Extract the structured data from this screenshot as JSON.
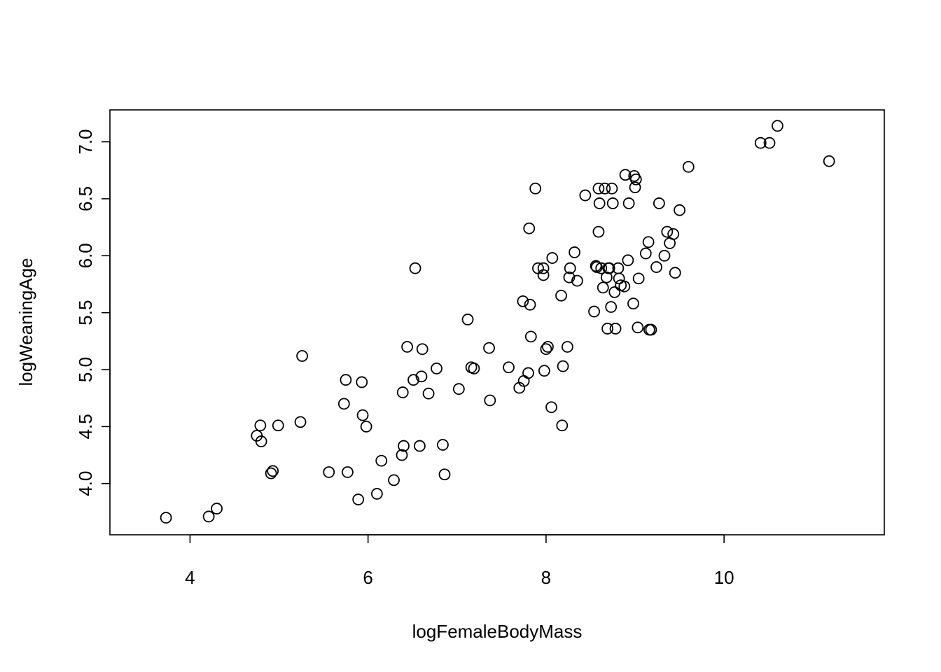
{
  "chart_data": {
    "type": "scatter",
    "title": "",
    "xlabel": "logFemaleBodyMass",
    "ylabel": "logWeaningAge",
    "xlim": [
      3.1,
      11.8
    ],
    "ylim": [
      3.55,
      7.28
    ],
    "xticks": [
      4,
      6,
      8,
      10
    ],
    "xtick_labels": [
      "4",
      "6",
      "8",
      "10"
    ],
    "yticks": [
      4.0,
      4.5,
      5.0,
      5.5,
      6.0,
      6.5,
      7.0
    ],
    "ytick_labels": [
      "4.0",
      "4.5",
      "5.0",
      "5.5",
      "6.0",
      "6.5",
      "7.0"
    ],
    "grid": false,
    "legend": "none",
    "marker": "open-circle",
    "x": [
      3.73,
      4.21,
      4.3,
      4.75,
      4.79,
      4.8,
      4.91,
      4.93,
      4.99,
      5.24,
      5.26,
      5.56,
      5.73,
      5.75,
      5.77,
      5.89,
      5.93,
      5.94,
      5.98,
      6.1,
      6.15,
      6.29,
      6.38,
      6.39,
      6.4,
      6.44,
      6.51,
      6.53,
      6.58,
      6.6,
      6.61,
      6.68,
      6.77,
      6.84,
      6.86,
      7.02,
      7.12,
      7.16,
      7.19,
      7.36,
      7.37,
      7.58,
      7.7,
      7.74,
      7.75,
      7.8,
      7.81,
      7.82,
      7.83,
      7.88,
      7.91,
      7.97,
      7.97,
      7.98,
      8.0,
      8.02,
      8.06,
      8.07,
      8.17,
      8.18,
      8.19,
      8.24,
      8.26,
      8.27,
      8.32,
      8.35,
      8.44,
      8.54,
      8.56,
      8.57,
      8.59,
      8.59,
      8.6,
      8.62,
      8.64,
      8.66,
      8.68,
      8.69,
      8.7,
      8.71,
      8.73,
      8.74,
      8.75,
      8.77,
      8.78,
      8.81,
      8.82,
      8.84,
      8.88,
      8.89,
      8.92,
      8.93,
      8.98,
      8.99,
      9.0,
      9.01,
      9.03,
      9.04,
      9.12,
      9.15,
      9.16,
      9.18,
      9.24,
      9.27,
      9.33,
      9.36,
      9.39,
      9.43,
      9.45,
      9.5,
      9.6,
      10.41,
      10.51,
      10.6,
      11.18
    ],
    "y": [
      3.7,
      3.71,
      3.78,
      4.42,
      4.51,
      4.37,
      4.09,
      4.11,
      4.51,
      4.54,
      5.12,
      4.1,
      4.7,
      4.91,
      4.1,
      3.86,
      4.89,
      4.6,
      4.5,
      3.91,
      4.2,
      4.03,
      4.25,
      4.8,
      4.33,
      5.2,
      4.91,
      5.89,
      4.33,
      4.94,
      5.18,
      4.79,
      5.01,
      4.34,
      4.08,
      4.83,
      5.44,
      5.02,
      5.01,
      5.19,
      4.73,
      5.02,
      4.84,
      5.6,
      4.9,
      4.97,
      6.24,
      5.57,
      5.29,
      6.59,
      5.89,
      5.89,
      5.83,
      4.99,
      5.18,
      5.2,
      4.67,
      5.98,
      5.65,
      4.51,
      5.03,
      5.2,
      5.81,
      5.89,
      6.03,
      5.78,
      6.53,
      5.51,
      5.91,
      5.9,
      6.59,
      6.21,
      6.46,
      5.89,
      5.72,
      6.59,
      5.81,
      5.36,
      5.89,
      5.89,
      5.55,
      6.59,
      6.46,
      5.68,
      5.36,
      5.89,
      5.8,
      5.74,
      5.73,
      6.71,
      5.96,
      6.46,
      5.58,
      6.7,
      6.6,
      6.67,
      5.37,
      5.8,
      6.02,
      6.12,
      5.35,
      5.35,
      5.9,
      6.46,
      6.0,
      6.21,
      6.11,
      6.19,
      5.85,
      6.4,
      6.78,
      6.99,
      6.99,
      7.14,
      6.83
    ]
  }
}
